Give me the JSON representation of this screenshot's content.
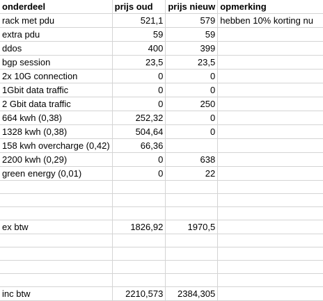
{
  "header": {
    "col0": "onderdeel",
    "col1": "prijs oud",
    "col2": "prijs nieuw",
    "col3": "opmerking"
  },
  "rows": [
    {
      "c0": "rack met pdu",
      "c1": "521,1",
      "c2": "579",
      "c3": "hebben 10% korting nu"
    },
    {
      "c0": "extra pdu",
      "c1": "59",
      "c2": "59",
      "c3": ""
    },
    {
      "c0": "ddos",
      "c1": "400",
      "c2": "399",
      "c3": ""
    },
    {
      "c0": "bgp session",
      "c1": "23,5",
      "c2": "23,5",
      "c3": ""
    },
    {
      "c0": "2x 10G connection",
      "c1": "0",
      "c2": "0",
      "c3": ""
    },
    {
      "c0": "1Gbit data traffic",
      "c1": "0",
      "c2": "0",
      "c3": ""
    },
    {
      "c0": "2 Gbit data traffic",
      "c1": "0",
      "c2": "250",
      "c3": ""
    },
    {
      "c0": "664 kwh (0,38)",
      "c1": "252,32",
      "c2": "0",
      "c3": ""
    },
    {
      "c0": "1328 kwh (0,38)",
      "c1": "504,64",
      "c2": "0",
      "c3": ""
    },
    {
      "c0": "158 kwh overcharge (0,42)",
      "c1": "66,36",
      "c2": "",
      "c3": ""
    },
    {
      "c0": "2200 kwh (0,29)",
      "c1": "0",
      "c2": "638",
      "c3": ""
    },
    {
      "c0": "green energy (0,01)",
      "c1": "0",
      "c2": "22",
      "c3": ""
    },
    {
      "c0": "",
      "c1": "",
      "c2": "",
      "c3": ""
    },
    {
      "c0": "",
      "c1": "",
      "c2": "",
      "c3": ""
    },
    {
      "c0": "",
      "c1": "",
      "c2": "",
      "c3": ""
    },
    {
      "c0": "ex btw",
      "c1": "1826,92",
      "c2": "1970,5",
      "c3": ""
    },
    {
      "c0": "",
      "c1": "",
      "c2": "",
      "c3": ""
    },
    {
      "c0": "",
      "c1": "",
      "c2": "",
      "c3": ""
    },
    {
      "c0": "",
      "c1": "",
      "c2": "",
      "c3": ""
    },
    {
      "c0": "",
      "c1": "",
      "c2": "",
      "c3": ""
    },
    {
      "c0": "inc btw",
      "c1": "2210,573",
      "c2": "2384,305",
      "c3": ""
    }
  ]
}
